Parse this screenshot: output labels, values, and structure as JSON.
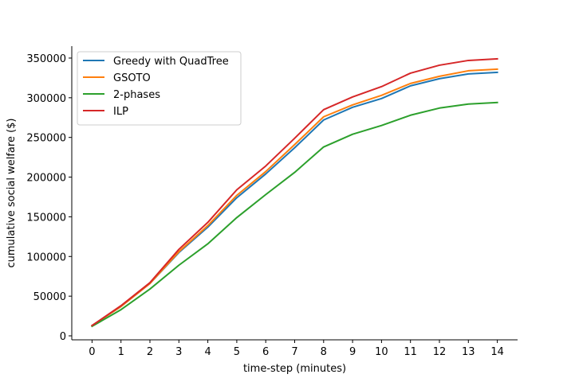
{
  "chart_data": {
    "type": "line",
    "title": "",
    "xlabel": "time-step (minutes)",
    "ylabel": "cumulative social welfare ($)",
    "x": [
      0,
      1,
      2,
      3,
      4,
      5,
      6,
      7,
      8,
      9,
      10,
      11,
      12,
      13,
      14
    ],
    "x_tick_labels": [
      "0",
      "1",
      "2",
      "3",
      "4",
      "5",
      "6",
      "7",
      "8",
      "9",
      "10",
      "11",
      "12",
      "13",
      "14"
    ],
    "y_tick_values": [
      0,
      50000,
      100000,
      150000,
      200000,
      250000,
      300000,
      350000
    ],
    "y_tick_labels": [
      "0",
      "50000",
      "100000",
      "150000",
      "200000",
      "250000",
      "300000",
      "350000"
    ],
    "xlim": [
      -0.7,
      14.7
    ],
    "ylim": [
      -5000,
      365000
    ],
    "grid": false,
    "legend_position": "top-left",
    "series": [
      {
        "name": "Greedy with QuadTree",
        "color": "#1f77b4",
        "values": [
          13000,
          37000,
          66000,
          105000,
          137000,
          174000,
          204000,
          237000,
          272000,
          288000,
          299000,
          315000,
          324000,
          330000,
          332000
        ]
      },
      {
        "name": "GSOTO",
        "color": "#ff7f0e",
        "values": [
          13000,
          37000,
          66000,
          106000,
          139000,
          177000,
          207000,
          241000,
          276000,
          291000,
          303000,
          318000,
          327000,
          334000,
          336000
        ]
      },
      {
        "name": "2-phases",
        "color": "#2ca02c",
        "values": [
          12000,
          33000,
          59000,
          89000,
          116000,
          149000,
          178000,
          206000,
          238000,
          254000,
          265000,
          278000,
          287000,
          292000,
          294000
        ]
      },
      {
        "name": "ILP",
        "color": "#d62728",
        "values": [
          13000,
          38000,
          67000,
          109000,
          143000,
          184000,
          214000,
          249000,
          285000,
          301000,
          314000,
          331000,
          341000,
          347000,
          349000
        ]
      }
    ]
  }
}
